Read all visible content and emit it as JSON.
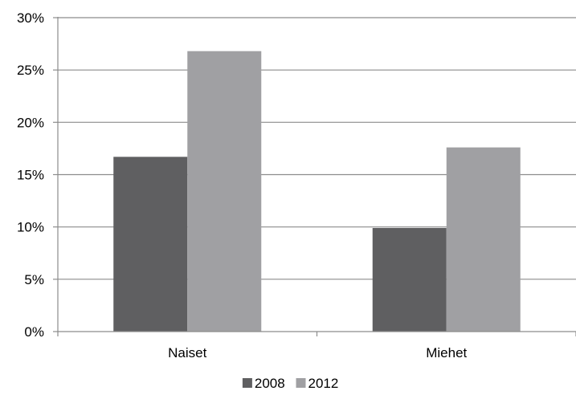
{
  "chart_data": {
    "type": "bar",
    "categories": [
      "Naiset",
      "Miehet"
    ],
    "series": [
      {
        "name": "2008",
        "values": [
          16.7,
          9.9
        ],
        "color": "#5f5f61"
      },
      {
        "name": "2012",
        "values": [
          26.8,
          17.6
        ],
        "color": "#a0a0a3"
      }
    ],
    "y_unit": "%",
    "ylim": [
      0,
      30
    ],
    "y_ticks": [
      0,
      5,
      10,
      15,
      20,
      25,
      30
    ],
    "y_tick_labels": [
      "0%",
      "5%",
      "10%",
      "15%",
      "20%",
      "25%",
      "30%"
    ],
    "grid": true,
    "legend_position": "bottom"
  }
}
